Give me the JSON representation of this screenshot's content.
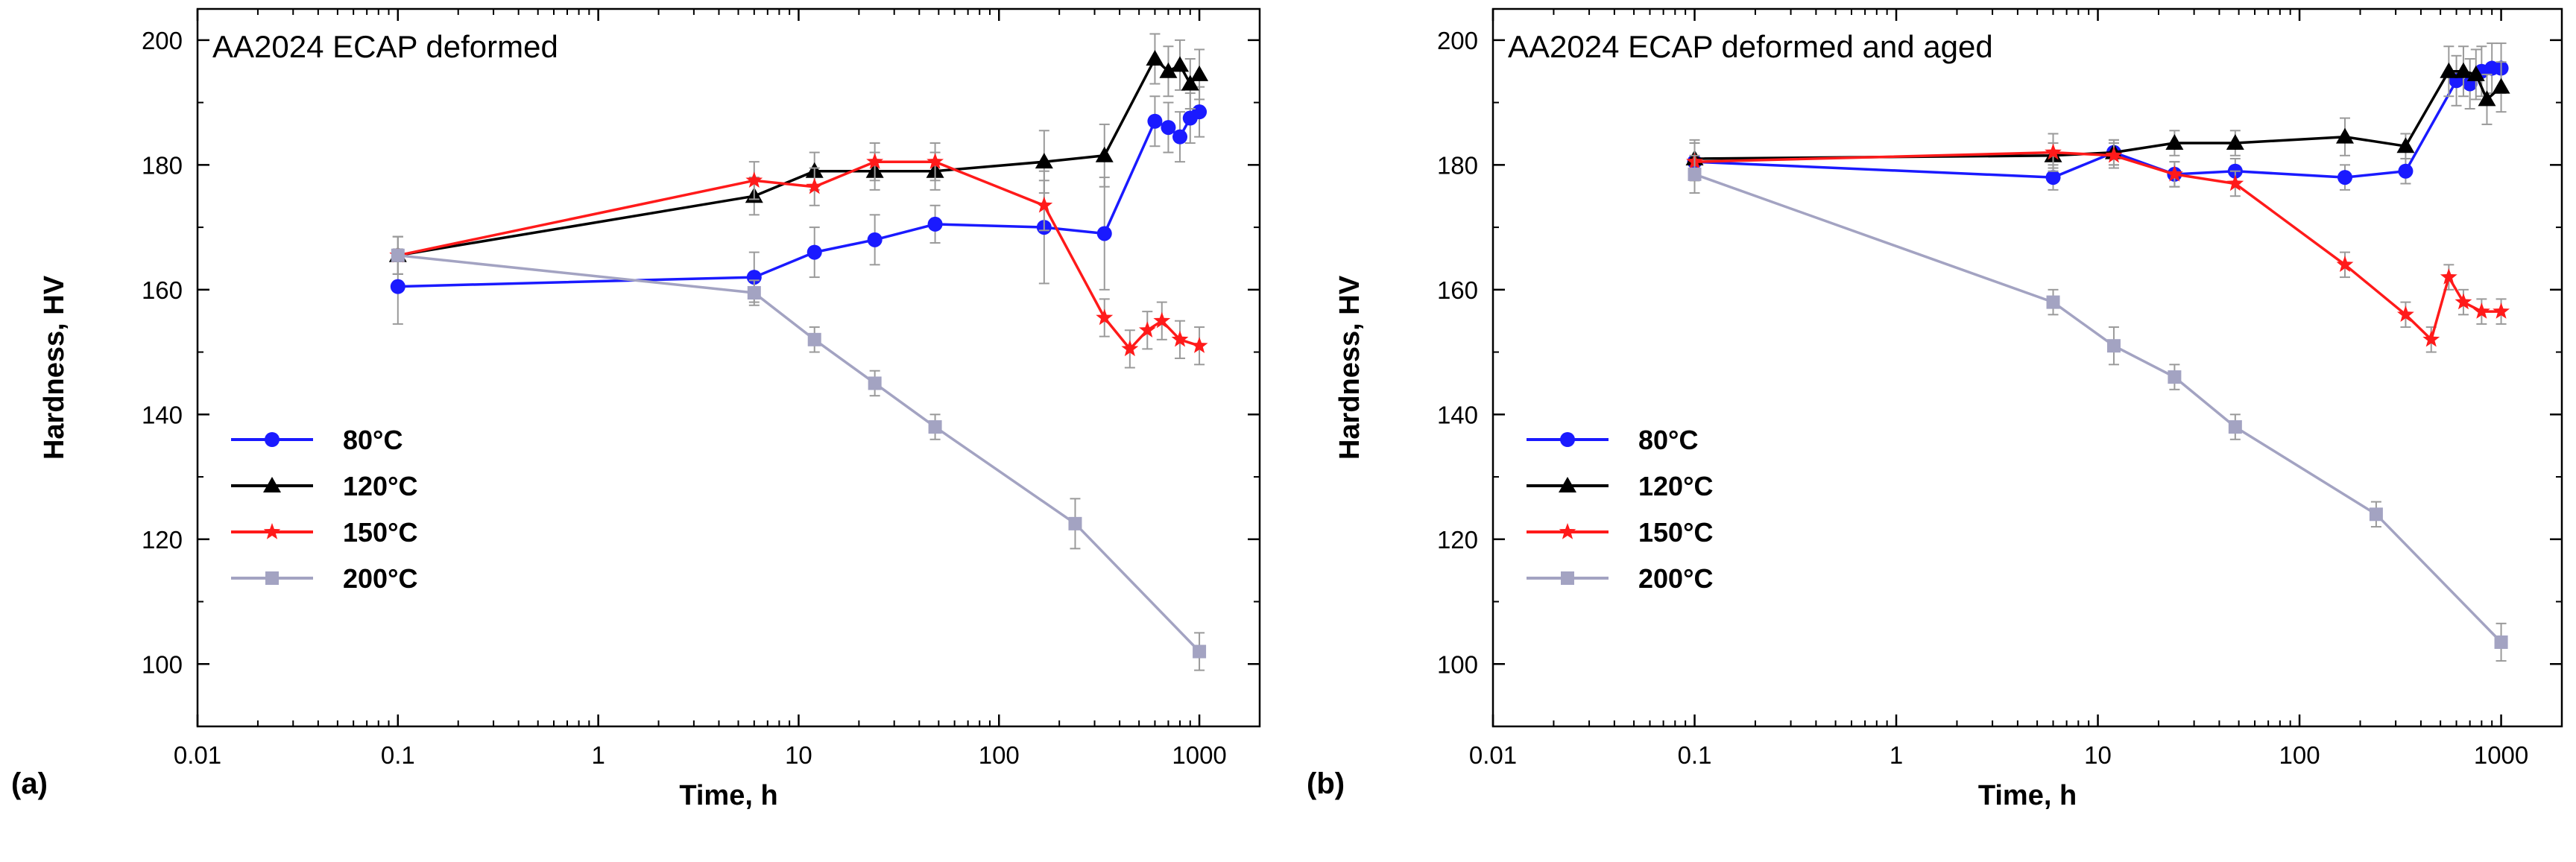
{
  "chart_data": [
    {
      "type": "line",
      "panel_label": "(a)",
      "title": "AA2024 ECAP deformed",
      "xlabel": "Time, h",
      "ylabel": "Hardness, HV",
      "xscale": "log",
      "xlim": [
        0.01,
        2000
      ],
      "ylim": [
        90,
        205
      ],
      "xticks": [
        0.01,
        0.1,
        1,
        10,
        100,
        1000
      ],
      "xtick_labels": [
        "0.01",
        "0.1",
        "1",
        "10",
        "100",
        "1000"
      ],
      "yticks": [
        100,
        120,
        140,
        160,
        180,
        200
      ],
      "ytick_labels": [
        "100",
        "120",
        "140",
        "160",
        "180",
        "200"
      ],
      "legend_position": "lower-left",
      "series": [
        {
          "name": "80",
          "unit": "°C",
          "color": "#1a1aff",
          "marker": "circle",
          "x": [
            0.1,
            6,
            12,
            24,
            48,
            168,
            336,
            600,
            700,
            800,
            900,
            1000
          ],
          "y": [
            160.5,
            162,
            166,
            168,
            170.5,
            170,
            169,
            187,
            186,
            184.5,
            187.5,
            188.5
          ],
          "err": [
            6,
            4,
            4,
            4,
            3,
            9,
            9,
            4,
            4,
            4,
            4,
            4
          ]
        },
        {
          "name": "120",
          "unit": "°C",
          "color": "#000000",
          "marker": "triangle",
          "x": [
            0.1,
            6,
            12,
            24,
            48,
            168,
            336,
            600,
            700,
            800,
            900,
            1000
          ],
          "y": [
            165.5,
            175,
            179,
            179,
            179,
            180.5,
            181.5,
            197,
            195,
            196,
            193,
            194.5
          ],
          "err": [
            3,
            3,
            3,
            3,
            3,
            5,
            5,
            4,
            4,
            4,
            4,
            4
          ]
        },
        {
          "name": "150",
          "unit": "°C",
          "color": "#ff1a1a",
          "marker": "star",
          "x": [
            0.1,
            6,
            12,
            24,
            48,
            168,
            336,
            450,
            550,
            650,
            800,
            1000
          ],
          "y": [
            165.5,
            177.5,
            176.5,
            180.5,
            180.5,
            173.5,
            155.5,
            150.5,
            153.5,
            155,
            152,
            151
          ],
          "err": [
            3,
            3,
            3,
            3,
            3,
            4,
            3,
            3,
            3,
            3,
            3,
            3
          ]
        },
        {
          "name": "200",
          "unit": "°C",
          "color": "#a3a3c2",
          "marker": "square",
          "x": [
            0.1,
            6,
            12,
            24,
            48,
            240,
            1000
          ],
          "y": [
            165.5,
            159.5,
            152,
            145,
            138,
            122.5,
            102
          ],
          "err": [
            3,
            2,
            2,
            2,
            2,
            4,
            3
          ]
        }
      ]
    },
    {
      "type": "line",
      "panel_label": "(b)",
      "title": "AA2024 ECAP deformed and aged",
      "xlabel": "Time, h",
      "ylabel": "Hardness, HV",
      "xscale": "log",
      "xlim": [
        0.01,
        2000
      ],
      "ylim": [
        90,
        205
      ],
      "xticks": [
        0.01,
        0.1,
        1,
        10,
        100,
        1000
      ],
      "xtick_labels": [
        "0.01",
        "0.1",
        "1",
        "10",
        "100",
        "1000"
      ],
      "yticks": [
        100,
        120,
        140,
        160,
        180,
        200
      ],
      "ytick_labels": [
        "100",
        "120",
        "140",
        "160",
        "180",
        "200"
      ],
      "legend_position": "lower-left",
      "series": [
        {
          "name": "80",
          "unit": "°C",
          "color": "#1a1aff",
          "marker": "circle",
          "x": [
            0.1,
            6,
            12,
            24,
            48,
            168,
            336,
            600,
            700,
            800,
            900,
            1000
          ],
          "y": [
            180.5,
            178,
            182,
            178.5,
            179,
            178,
            179,
            193.5,
            193,
            195,
            195.5,
            195.5
          ],
          "err": [
            3,
            2,
            2,
            2,
            2,
            2,
            2,
            4,
            4,
            4,
            4,
            4
          ]
        },
        {
          "name": "120",
          "unit": "°C",
          "color": "#000000",
          "marker": "triangle",
          "x": [
            0.1,
            6,
            12,
            24,
            48,
            168,
            336,
            550,
            650,
            750,
            850,
            1000
          ],
          "y": [
            181,
            181.5,
            182,
            183.5,
            183.5,
            184.5,
            183,
            195,
            195,
            194.5,
            190.5,
            192.5
          ],
          "err": [
            3,
            2,
            2,
            2,
            2,
            3,
            2,
            4,
            4,
            4,
            4,
            4
          ]
        },
        {
          "name": "150",
          "unit": "°C",
          "color": "#ff1a1a",
          "marker": "star",
          "x": [
            0.1,
            6,
            12,
            24,
            48,
            168,
            336,
            450,
            550,
            650,
            800,
            1000
          ],
          "y": [
            180.5,
            182,
            181.5,
            178.5,
            177,
            164,
            156,
            152,
            162,
            158,
            156.5,
            156.5
          ],
          "err": [
            3,
            3,
            2,
            2,
            2,
            2,
            2,
            2,
            2,
            2,
            2,
            2
          ]
        },
        {
          "name": "200",
          "unit": "°C",
          "color": "#a3a3c2",
          "marker": "square",
          "x": [
            0.1,
            6,
            12,
            24,
            48,
            240,
            1000
          ],
          "y": [
            178.5,
            158,
            151,
            146,
            138,
            124,
            103.5
          ],
          "err": [
            3,
            2,
            3,
            2,
            2,
            2,
            3
          ]
        }
      ]
    }
  ]
}
